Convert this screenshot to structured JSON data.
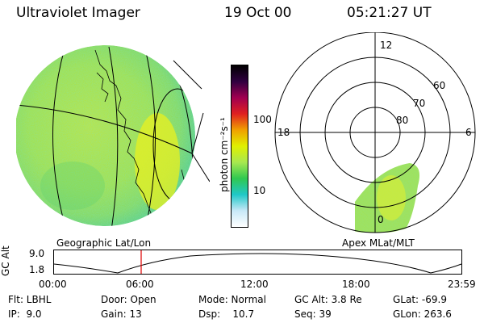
{
  "header": {
    "title": "Ultraviolet Imager",
    "date": "19 Oct 00",
    "time": "05:21:27 UT"
  },
  "colorbar": {
    "label": "photon cm⁻²s⁻¹",
    "ticks": [
      "100",
      "10"
    ],
    "colors": [
      "#ffffff",
      "#c8e8f8",
      "#20c8c8",
      "#30c850",
      "#a8e850",
      "#e0f000",
      "#f0a000",
      "#e02020",
      "#a00050",
      "#300040",
      "#000000"
    ]
  },
  "geo_panel": {
    "caption": "Geographic Lat/Lon",
    "colors": {
      "fill": "#b0e040",
      "edge": "#40c880",
      "bright": "#e8f020"
    }
  },
  "apex_panel": {
    "caption": "Apex MLat/MLT",
    "mlt_labels": {
      "top": "12",
      "left": "18",
      "right": "6",
      "bottom": "0"
    },
    "mlat_labels": [
      "60",
      "70",
      "80"
    ]
  },
  "timeline": {
    "axis_title": "GC Alt",
    "ytick_top": "9.0",
    "ytick_bottom": "1.8",
    "x_labels": [
      "00:00",
      "06:00",
      "12:00",
      "18:00",
      "23:59"
    ],
    "marker_color": "#e00000"
  },
  "info": {
    "row1": [
      "Flt: LBHL",
      "Door: Open",
      "Mode: Normal",
      "GC Alt: 3.8 Re",
      "GLat: -69.9"
    ],
    "row2": [
      "IP:  9.0",
      "Gain: 13",
      "Dsp:    10.7",
      "Seq: 39",
      "GLon: 263.6"
    ]
  }
}
